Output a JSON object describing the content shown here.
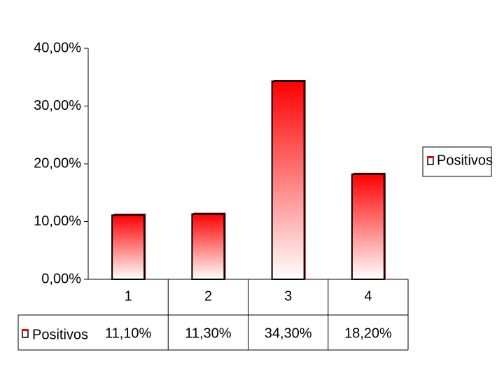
{
  "chart_data": {
    "type": "bar",
    "categories": [
      "1",
      "2",
      "3",
      "4"
    ],
    "series": [
      {
        "name": "Positivos",
        "color": "#ff0000",
        "values": [
          11.1,
          11.3,
          34.3,
          18.2
        ],
        "value_labels": [
          "11,10%",
          "11,30%",
          "34,30%",
          "18,20%"
        ]
      }
    ],
    "ylim": [
      0,
      40
    ],
    "yticks": [
      {
        "value": 0,
        "label": "0,00%"
      },
      {
        "value": 10,
        "label": "10,00%"
      },
      {
        "value": 20,
        "label": "20,00%"
      },
      {
        "value": 30,
        "label": "30,00%"
      },
      {
        "value": 40,
        "label": "40,00%"
      }
    ],
    "legend": "right"
  }
}
